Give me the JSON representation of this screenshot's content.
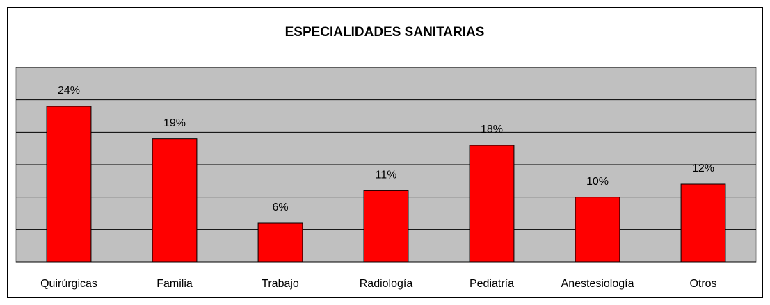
{
  "chart_data": {
    "type": "bar",
    "title": "ESPECIALIDADES SANITARIAS",
    "categories": [
      "Quirúrgicas",
      "Familia",
      "Trabajo",
      "Radiología",
      "Pediatría",
      "Anestesiología",
      "Otros"
    ],
    "values": [
      24,
      19,
      6,
      11,
      18,
      10,
      12
    ],
    "value_labels": [
      "24%",
      "19%",
      "6%",
      "11%",
      "18%",
      "10%",
      "12%"
    ],
    "color": "#ff0000",
    "ylim": [
      0,
      30
    ],
    "yticks": [
      0,
      5,
      10,
      15,
      20,
      25,
      30
    ],
    "grid": true
  }
}
